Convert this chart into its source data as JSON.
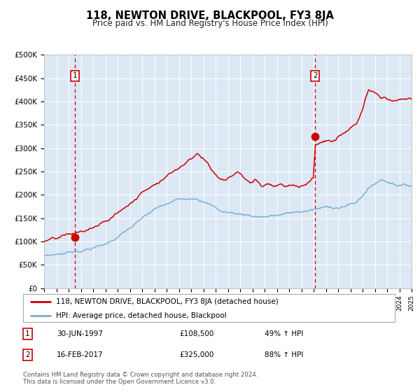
{
  "title": "118, NEWTON DRIVE, BLACKPOOL, FY3 8JA",
  "subtitle": "Price paid vs. HM Land Registry's House Price Index (HPI)",
  "hpi_color": "#7aafd4",
  "price_color": "#cc0000",
  "plot_bg": "#dce8f4",
  "ylim": [
    0,
    500000
  ],
  "yticks": [
    0,
    50000,
    100000,
    150000,
    200000,
    250000,
    300000,
    350000,
    400000,
    450000,
    500000
  ],
  "ytick_labels": [
    "£0",
    "£50K",
    "£100K",
    "£150K",
    "£200K",
    "£250K",
    "£300K",
    "£350K",
    "£400K",
    "£450K",
    "£500K"
  ],
  "transaction1_date": 1997.5,
  "transaction1_price": 108500,
  "transaction2_date": 2017.12,
  "transaction2_price": 325000,
  "legend_label1": "118, NEWTON DRIVE, BLACKPOOL, FY3 8JA (detached house)",
  "legend_label2": "HPI: Average price, detached house, Blackpool",
  "note1_label": "1",
  "note1_date": "30-JUN-1997",
  "note1_price": "£108,500",
  "note1_hpi": "49% ↑ HPI",
  "note2_label": "2",
  "note2_date": "16-FEB-2017",
  "note2_price": "£325,000",
  "note2_hpi": "88% ↑ HPI",
  "footer": "Contains HM Land Registry data © Crown copyright and database right 2024.\nThis data is licensed under the Open Government Licence v3.0."
}
